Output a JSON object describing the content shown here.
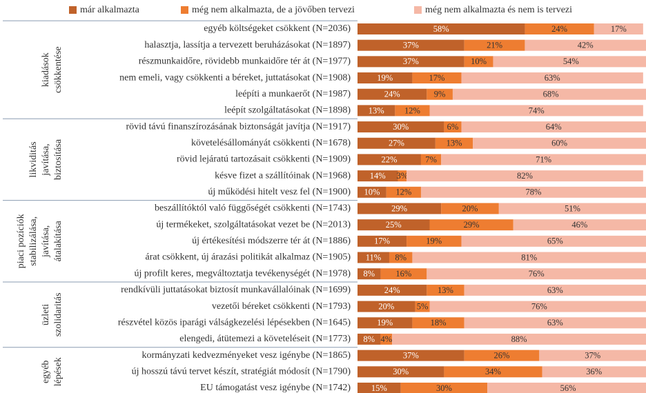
{
  "chart_data": {
    "type": "stacked-bar",
    "xlim": [
      0,
      100
    ],
    "groups": [
      {
        "label": [
          "kiadások",
          "csökkentése"
        ],
        "categories": [
          "egyéb költségeket csökkent (N=2036)",
          "halasztja, lassítja a tervezett beruházásokat (N=1897)",
          "részmunkaidőre, rövidebb munkaidőre tér át (N=1977)",
          "nem emeli, vagy csökkenti a béreket, juttatásokat (N=1908)",
          "leépíti a munkaerőt (N=1987)",
          "leépít szolgáltatásokat (N=1898)"
        ]
      },
      {
        "label": [
          "likviditás",
          "javítása,",
          "biztosítása"
        ],
        "categories": [
          "rövid távú finanszírozásának biztonságát javítja (N=1917)",
          "követelésállományát csökkenti (N=1678)",
          "rövid lejáratú tartozásait csökkenti (N=1909)",
          "késve fizet a szállítóinak (N=1968)",
          "új működési hitelt vesz fel (N=1900)"
        ]
      },
      {
        "label": [
          "piaci pozíciók",
          "stabilizálása,",
          "javítása,",
          "átalakítása"
        ],
        "categories": [
          "beszállítóktól való függőségét csökkenti (N=1743)",
          "új termékeket, szolgáltatásokat vezet be (N=2013)",
          "új értékesítési módszerre tér át (N=1886)",
          "árat csökkent, új árazási politikát alkalmaz (N=1905)",
          "új profilt keres, megváltoztatja tevékenységét (N=1978)"
        ]
      },
      {
        "label": [
          "üzleti",
          "szolidaritás"
        ],
        "categories": [
          "rendkívüli juttatásokat biztosít munkavállalóinak (N=1699)",
          "vezetői béreket csökkenti (N=1793)",
          "részvétel közös iparági válságkezelési lépésekben (N=1645)",
          "elengedi, átütemezi a követeléseit (N=1773)"
        ]
      },
      {
        "label": [
          "egyéb",
          "lépések"
        ],
        "categories": [
          "kormányzati kedvezményeket vesz igénybe (N=1865)",
          "új hosszú távú tervet készít, stratégiát módosít (N=1790)",
          "EU támogatást vesz igénybe (N=1742)"
        ]
      }
    ],
    "series": [
      {
        "name": "már alkalmazta",
        "color": "#c0622a",
        "values": [
          58,
          37,
          37,
          19,
          24,
          13,
          30,
          27,
          22,
          14,
          10,
          29,
          25,
          17,
          11,
          8,
          24,
          20,
          19,
          8,
          37,
          30,
          15
        ],
        "value_labels": [
          "58%",
          "37%",
          "37%",
          "19%",
          "24%",
          "13%",
          "30%",
          "27%",
          "22%",
          "14%",
          "10%",
          "29%",
          "25%",
          "17%",
          "11%",
          "8%",
          "24%",
          "20%",
          "19%",
          "8%",
          "37%",
          "30%",
          "15%"
        ]
      },
      {
        "name": "még nem alkalmazta, de a jövőben tervezi",
        "color": "#ee7d31",
        "values": [
          24,
          21,
          10,
          17,
          9,
          12,
          6,
          13,
          7,
          3,
          12,
          20,
          29,
          19,
          8,
          16,
          13,
          5,
          18,
          4,
          26,
          34,
          30
        ],
        "value_labels": [
          "24%",
          "21%",
          "10%",
          "17%",
          "9%",
          "12%",
          "6%",
          "13%",
          "7%",
          "3%",
          "12%",
          "20%",
          "29%",
          "19%",
          "8%",
          "16%",
          "13%",
          "5%",
          "18%",
          "4%",
          "26%",
          "34%",
          "30%"
        ]
      },
      {
        "name": "még nem alkalmazta és nem is tervezi",
        "color": "#f5b8a6",
        "values": [
          17,
          42,
          54,
          63,
          68,
          74,
          64,
          60,
          71,
          82,
          78,
          51,
          46,
          65,
          81,
          76,
          63,
          76,
          63,
          88,
          37,
          36,
          56
        ],
        "value_labels": [
          "17%",
          "42%",
          "54%",
          "63%",
          "68%",
          "74%",
          "64%",
          "60%",
          "71%",
          "82%",
          "78%",
          "51%",
          "46%",
          "65%",
          "81%",
          "76%",
          "63%",
          "76%",
          "63%",
          "88%",
          "37%",
          "36%",
          "56%"
        ]
      }
    ]
  }
}
